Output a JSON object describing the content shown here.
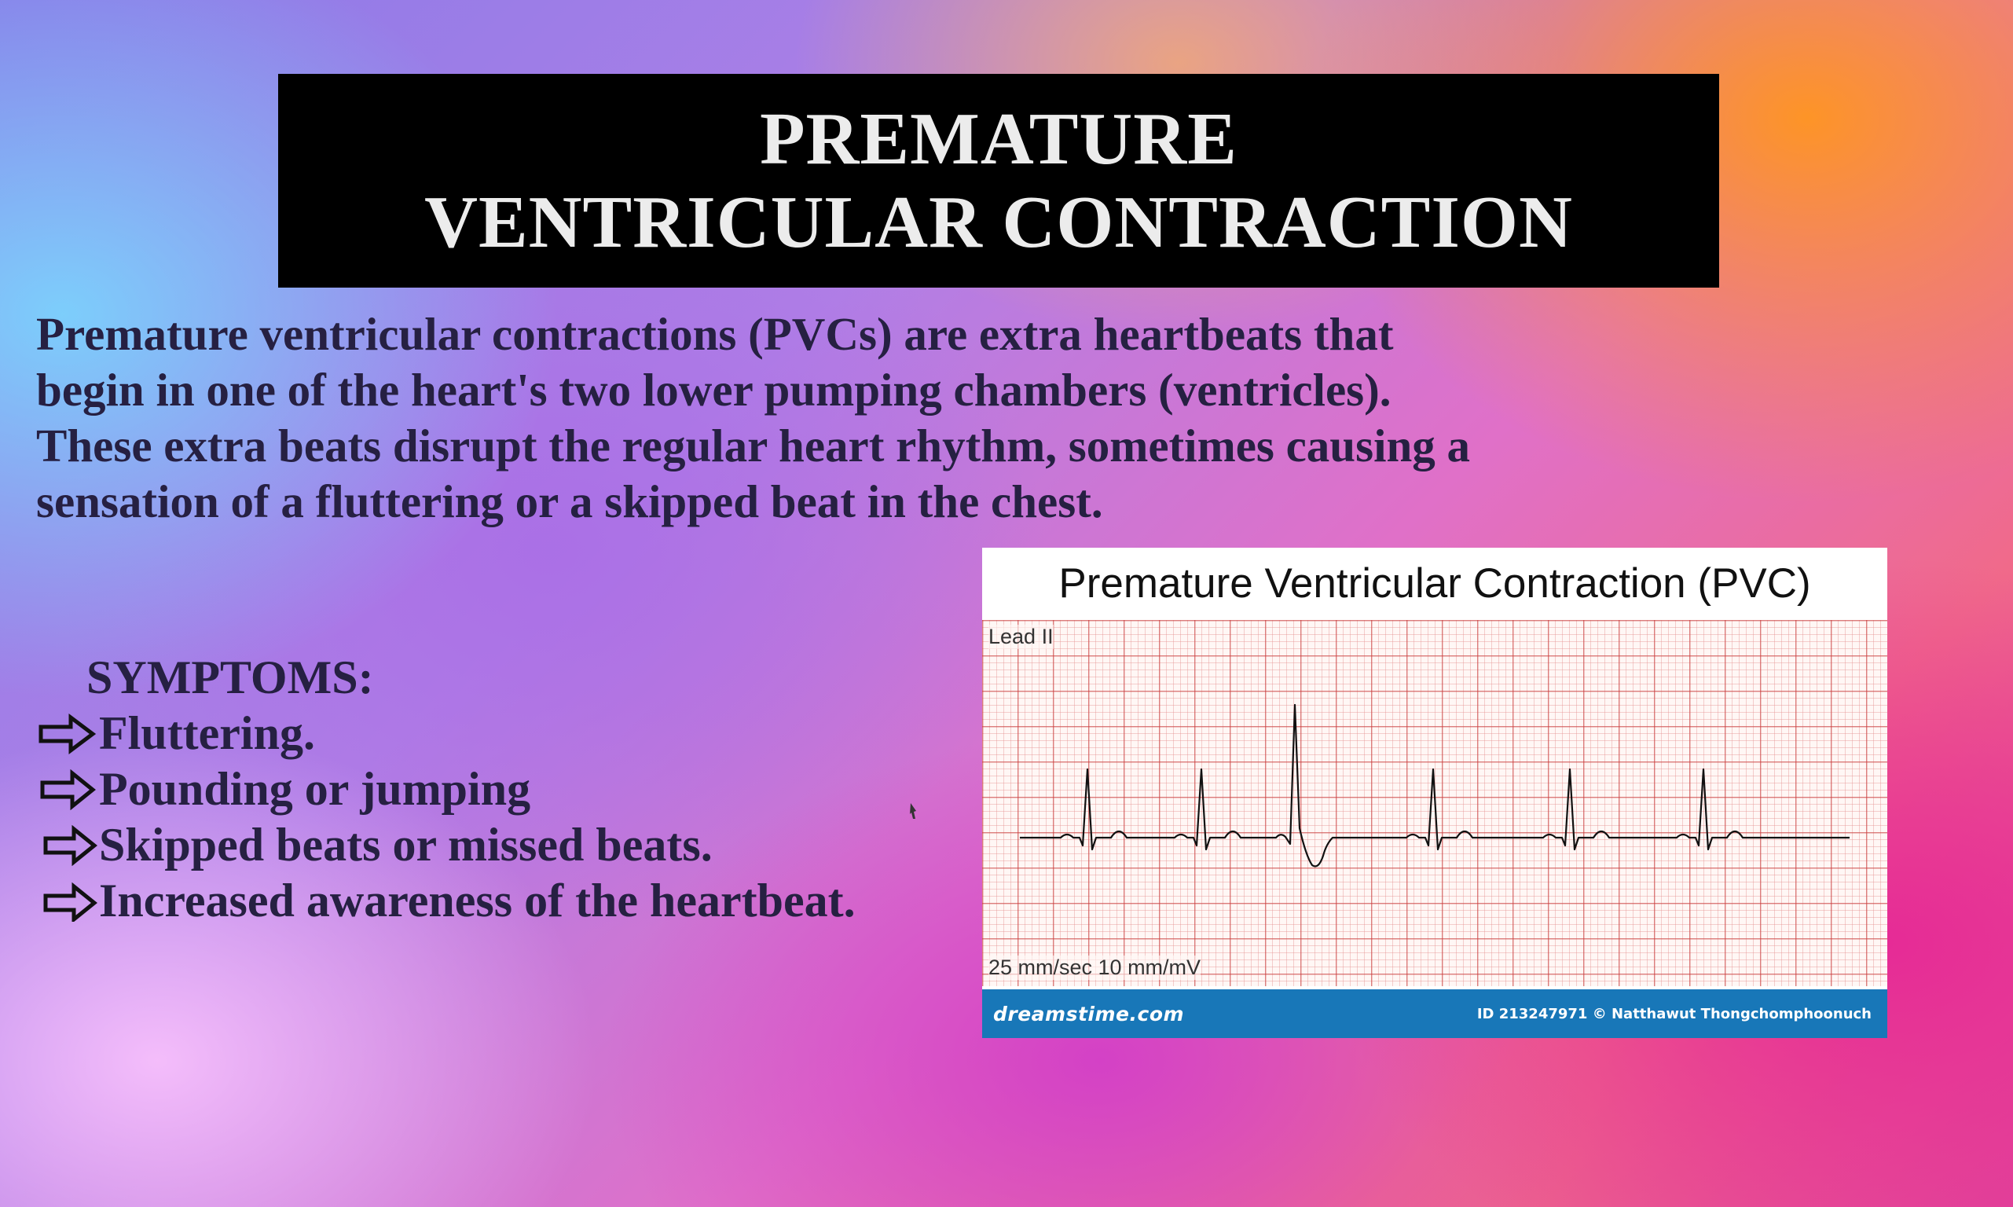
{
  "slide": {
    "title_line1": "PREMATURE",
    "title_line2": "VENTRICULAR CONTRACTION",
    "description": "Premature ventricular contractions (PVCs) are extra heartbeats that begin in one of the heart's two lower pumping chambers (ventricles). These extra beats disrupt the regular heart rhythm, sometimes causing a sensation of a fluttering or a skipped beat in the chest.",
    "symptoms_heading": "SYMPTOMS:",
    "symptoms": [
      "Fluttering.",
      "Pounding or jumping",
      "Skipped beats or missed beats.",
      "Increased awareness of the heartbeat."
    ]
  },
  "ecg_image": {
    "title": "Premature Ventricular Contraction (PVC)",
    "lead_label": "Lead II",
    "scale_label": "25 mm/sec 10 mm/mV",
    "brand": "dreamstime.com",
    "credit": "ID 213247971 © Natthawut Thongchomphoonuch",
    "trace_color": "#111111",
    "grid_color": "#c83c3c",
    "footer_color": "#1877b8"
  },
  "colors": {
    "title_bg": "#000000",
    "title_text": "#ececec",
    "body_text": "#262042"
  },
  "icons": {
    "symptom_bullet": "right-arrow-outline-icon"
  }
}
